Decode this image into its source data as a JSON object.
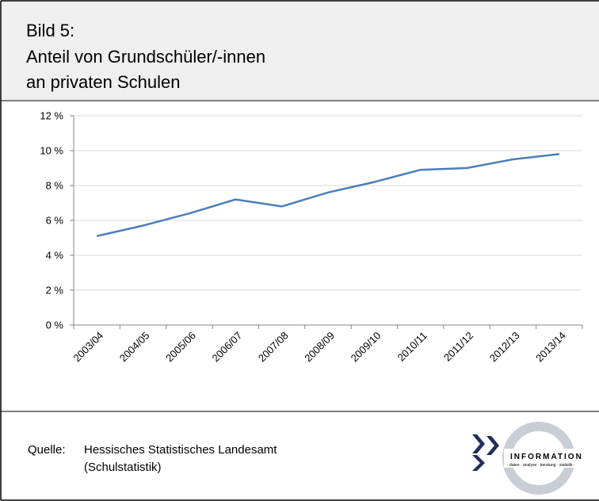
{
  "header": {
    "title_lines": [
      "Bild 5:",
      "Anteil von Grundschüler/-innen",
      "an privaten Schulen"
    ]
  },
  "chart_data": {
    "type": "line",
    "categories": [
      "2003/04",
      "2004/05",
      "2005/06",
      "2006/07",
      "2007/08",
      "2008/09",
      "2009/10",
      "2010/11",
      "2011/12",
      "2012/13",
      "2013/14"
    ],
    "values": [
      5.1,
      5.7,
      6.4,
      7.2,
      6.8,
      7.6,
      8.2,
      8.9,
      9.0,
      9.5,
      9.8
    ],
    "color": "#4a7ebb",
    "ylim": [
      0,
      12
    ],
    "yticks": [
      {
        "value": 0,
        "label": "0 %"
      },
      {
        "value": 2,
        "label": "2 %"
      },
      {
        "value": 4,
        "label": "4 %"
      },
      {
        "value": 6,
        "label": "6 %"
      },
      {
        "value": 8,
        "label": "8 %"
      },
      {
        "value": 10,
        "label": "10 %"
      },
      {
        "value": 12,
        "label": "12 %"
      }
    ],
    "grid": true
  },
  "footer": {
    "source_label": "Quelle:",
    "source_lines": [
      "Hessisches Statistisches Landesamt",
      "(Schulstatistik)"
    ]
  },
  "logo": {
    "text": "INFORMATION",
    "tagline": "· daten · analyse · beratung · statistik ·"
  }
}
